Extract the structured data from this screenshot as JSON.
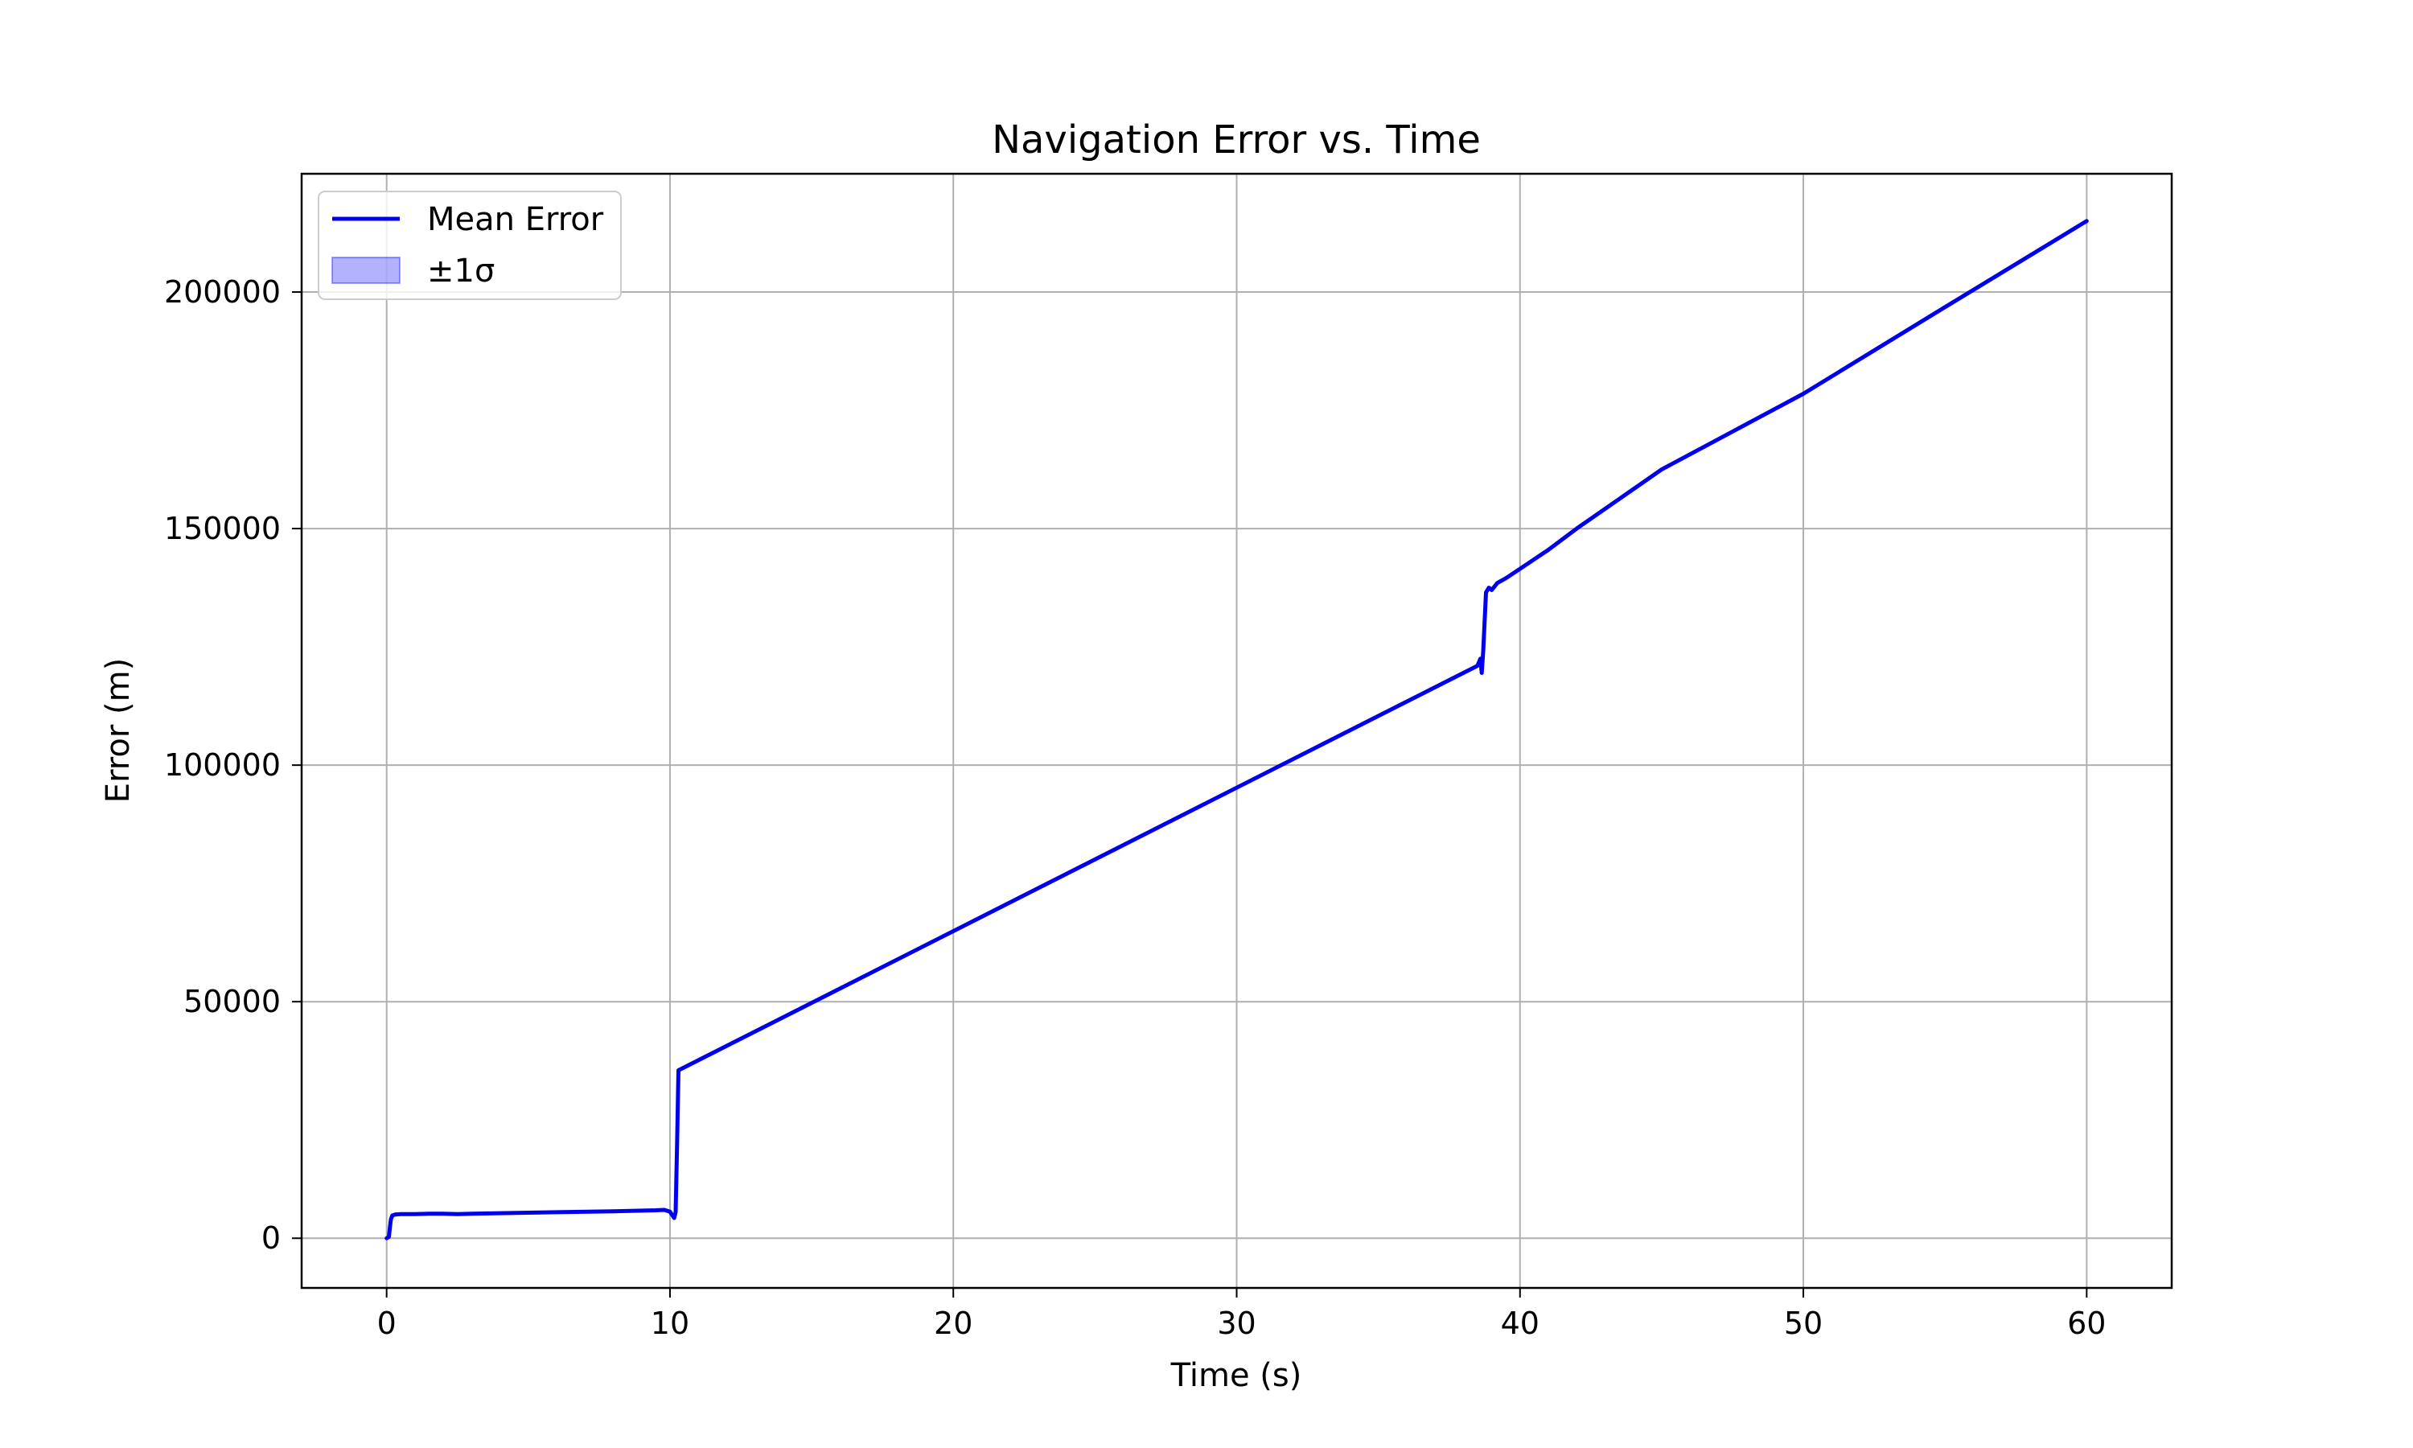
{
  "chart_data": {
    "type": "line",
    "title": "Navigation Error vs. Time",
    "xlabel": "Time (s)",
    "ylabel": "Error (m)",
    "xlim": [
      -3,
      63
    ],
    "ylim": [
      -10500,
      225000
    ],
    "xticks": [
      0,
      10,
      20,
      30,
      40,
      50,
      60
    ],
    "yticks": [
      0,
      50000,
      100000,
      150000,
      200000
    ],
    "grid": true,
    "legend_position": "upper-left",
    "series": [
      {
        "name": "Mean Error",
        "color": "#0000ee",
        "x": [
          0.0,
          0.08,
          0.12,
          0.15,
          0.2,
          0.3,
          0.5,
          1.0,
          1.5,
          2.0,
          2.5,
          3.0,
          4.0,
          6.0,
          8.0,
          9.5,
          9.8,
          10.0,
          10.15,
          10.2,
          10.25,
          10.3,
          38.5,
          38.6,
          38.65,
          38.7,
          38.8,
          38.9,
          39.0,
          39.2,
          39.5,
          40.0,
          41.0,
          42.0,
          45.0,
          50.0,
          55.0,
          60.0
        ],
        "y": [
          0,
          300,
          2500,
          4000,
          4800,
          5000,
          5100,
          5100,
          5200,
          5200,
          5100,
          5200,
          5300,
          5500,
          5700,
          5900,
          6000,
          5600,
          4300,
          5500,
          20000,
          35500,
          121000,
          122500,
          119500,
          124000,
          136500,
          137500,
          137000,
          138500,
          139500,
          141500,
          145500,
          150000,
          162500,
          178500,
          196800,
          215000
        ]
      }
    ],
    "band": {
      "name": "±1σ",
      "color": "#0000ff",
      "opacity": 0.3
    }
  }
}
